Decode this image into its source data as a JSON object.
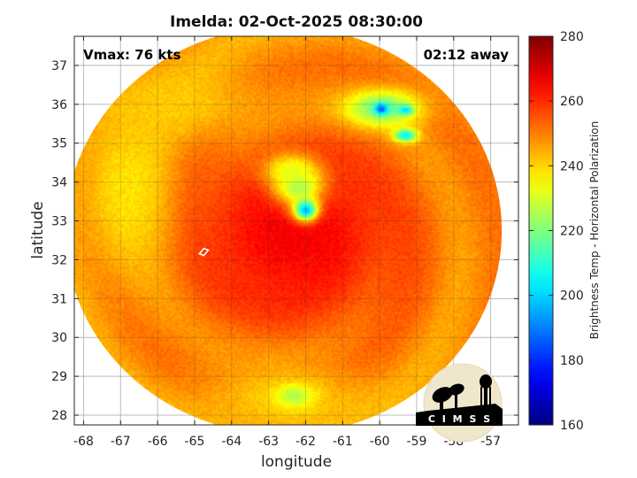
{
  "chart_data": {
    "type": "heatmap",
    "title": "Imelda: 02-Oct-2025 08:30:00",
    "xlabel": "longitude",
    "ylabel": "latitude",
    "xlim": [
      -68.25,
      -56.25
    ],
    "ylim": [
      27.75,
      37.75
    ],
    "x_ticks": [
      -68,
      -67,
      -66,
      -65,
      -64,
      -63,
      -62,
      -61,
      -60,
      -59,
      -58,
      -57
    ],
    "y_ticks": [
      28,
      29,
      30,
      31,
      32,
      33,
      34,
      35,
      36,
      37
    ],
    "grid": true,
    "colorbar": {
      "label": "Brightness Temp - Horizontal Polarization",
      "range": [
        160,
        280
      ],
      "ticks": [
        160,
        180,
        200,
        220,
        240,
        260,
        280
      ],
      "colormap": "jet"
    },
    "annotations": {
      "top_left": "Vmax: 76 kts",
      "top_right": "02:12 away"
    },
    "storm_center": {
      "lon": -62.2,
      "lat": 32.7
    },
    "swath": {
      "center_lon": -62.6,
      "center_lat": 32.75,
      "radius_lon": 5.9,
      "radius_lat": 5.25
    },
    "features": [
      {
        "kind": "warm-background",
        "lon": -62.3,
        "lat": 32.7,
        "sx": 2.3,
        "sy": 1.9,
        "value": 266
      },
      {
        "kind": "outer-band-west",
        "lon": -66.8,
        "lat": 33.8,
        "sx": 0.9,
        "sy": 1.6,
        "value": 238
      },
      {
        "kind": "outer-band-northwest",
        "lon": -65.6,
        "lat": 36.0,
        "sx": 1.8,
        "sy": 0.7,
        "value": 241
      },
      {
        "kind": "outer-band-south",
        "lon": -62.5,
        "lat": 28.4,
        "sx": 1.6,
        "sy": 0.6,
        "value": 240
      },
      {
        "kind": "eyewall-convection",
        "lon": -62.0,
        "lat": 33.3,
        "sx": 0.22,
        "sy": 0.2,
        "value": 190
      },
      {
        "kind": "inner-band-north",
        "lon": -62.2,
        "lat": 33.9,
        "sx": 0.45,
        "sy": 0.35,
        "value": 222
      },
      {
        "kind": "inner-band-north-2",
        "lon": -62.4,
        "lat": 34.3,
        "sx": 0.5,
        "sy": 0.3,
        "value": 232
      },
      {
        "kind": "northeast-band",
        "lon": -59.9,
        "lat": 35.9,
        "sx": 0.7,
        "sy": 0.32,
        "value": 216
      },
      {
        "kind": "northeast-cell-1",
        "lon": -59.95,
        "lat": 35.88,
        "sx": 0.12,
        "sy": 0.09,
        "value": 185
      },
      {
        "kind": "northeast-cell-2",
        "lon": -59.3,
        "lat": 35.85,
        "sx": 0.14,
        "sy": 0.08,
        "value": 200
      },
      {
        "kind": "east-cell",
        "lon": -59.3,
        "lat": 35.2,
        "sx": 0.22,
        "sy": 0.12,
        "value": 205
      },
      {
        "kind": "south-cells",
        "lon": -62.3,
        "lat": 28.5,
        "sx": 0.35,
        "sy": 0.2,
        "value": 226
      }
    ],
    "logo_text": "C I M S S"
  }
}
